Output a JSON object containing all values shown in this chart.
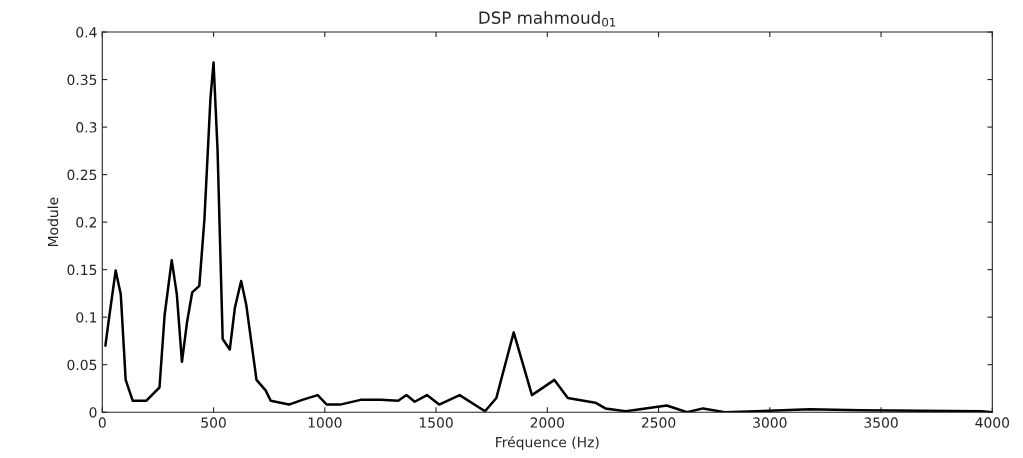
{
  "chart_data": {
    "type": "line",
    "title": "DSP mahmoud$_{01}$",
    "xlabel": "Fréquence (Hz)",
    "ylabel": "Module",
    "xlim": [
      0,
      4000
    ],
    "xticks": [
      0,
      500,
      1000,
      1500,
      2000,
      2500,
      3000,
      3500,
      4000
    ],
    "ylim": [
      0,
      0.4
    ],
    "yticks": [
      0,
      0.05,
      0.1,
      0.15,
      0.2,
      0.25,
      0.3,
      0.35,
      0.4
    ],
    "grid": false,
    "legend": false,
    "series": [
      {
        "color": "#000000",
        "x": [
          14,
          28,
          60,
          83,
          105,
          137,
          197,
          257,
          280,
          312,
          335,
          358,
          381,
          404,
          436,
          459,
          486,
          500,
          518,
          541,
          573,
          596,
          624,
          647,
          693,
          734,
          757,
          839,
          899,
          968,
          1009,
          1069,
          1161,
          1252,
          1330,
          1367,
          1404,
          1459,
          1514,
          1606,
          1720,
          1771,
          1849,
          1931,
          2032,
          2092,
          2216,
          2261,
          2353,
          2537,
          2628,
          2700,
          2798,
          3179,
          3408,
          3950,
          4000
        ],
        "values": [
          0.07,
          0.095,
          0.149,
          0.124,
          0.034,
          0.012,
          0.012,
          0.026,
          0.102,
          0.16,
          0.124,
          0.053,
          0.095,
          0.126,
          0.133,
          0.203,
          0.33,
          0.368,
          0.276,
          0.077,
          0.066,
          0.11,
          0.138,
          0.113,
          0.034,
          0.023,
          0.012,
          0.008,
          0.013,
          0.018,
          0.008,
          0.008,
          0.013,
          0.013,
          0.012,
          0.018,
          0.011,
          0.018,
          0.008,
          0.018,
          0.001,
          0.015,
          0.084,
          0.018,
          0.034,
          0.015,
          0.01,
          0.004,
          0.001,
          0.007,
          0,
          0.004,
          0,
          0.003,
          0.002,
          0.001,
          0
        ]
      }
    ]
  }
}
